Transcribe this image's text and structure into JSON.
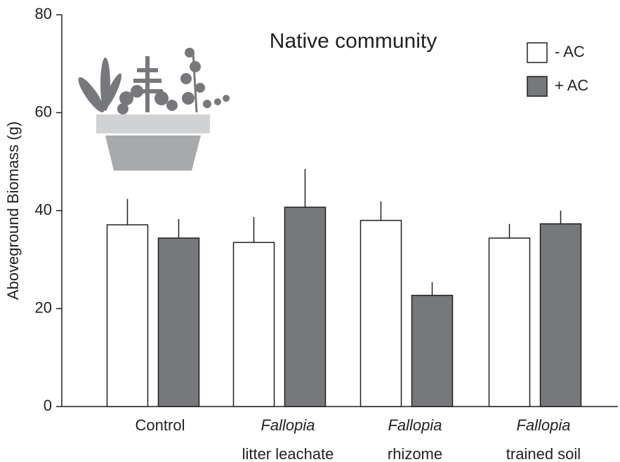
{
  "chart_data": {
    "type": "bar",
    "title": "Native community",
    "y_label": "Aboveground Biomass (g)",
    "categories": [
      [
        "Control"
      ],
      [
        "Fallopia",
        "litter leachate"
      ],
      [
        "Fallopia",
        "rhizome"
      ],
      [
        "Fallopia",
        "trained soil"
      ]
    ],
    "series": [
      {
        "name": "- AC",
        "color": "#ffffff",
        "values": [
          37.1,
          33.5,
          38.0,
          34.4
        ],
        "errors": [
          5.3,
          5.2,
          3.9,
          2.9
        ]
      },
      {
        "name": "+ AC",
        "color": "#77787b",
        "values": [
          34.4,
          40.7,
          22.7,
          37.3
        ],
        "errors": [
          3.9,
          7.8,
          2.7,
          2.7
        ]
      }
    ],
    "ylim": [
      0,
      80
    ],
    "yticks": [
      0,
      20,
      40,
      60,
      80
    ],
    "legend": "upper right"
  }
}
